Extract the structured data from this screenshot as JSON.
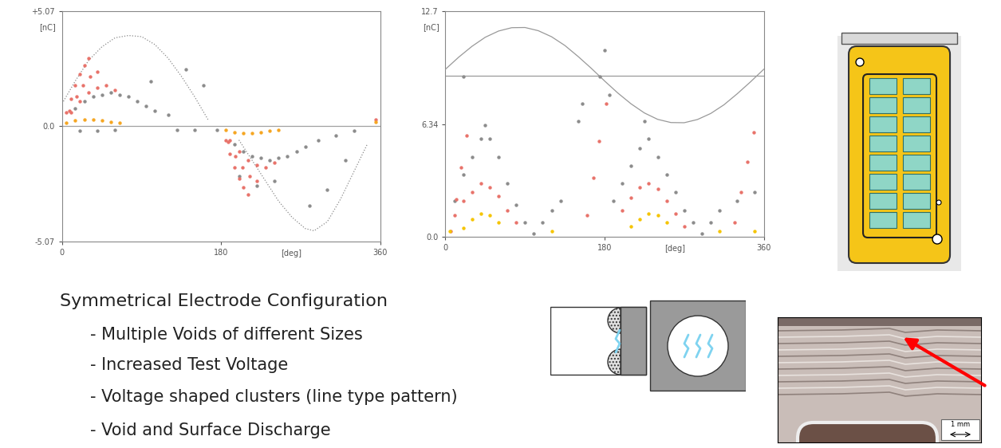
{
  "chart_data": [
    {
      "type": "scatter",
      "xlabel": "[deg]",
      "ylabel": "[nC]",
      "xlim": [
        0,
        360
      ],
      "ylim": [
        -5.07,
        5.07
      ],
      "xticks": [
        0,
        180,
        360
      ],
      "yticks": [
        -5.07,
        {
          "value": 0,
          "label": "0.0"
        },
        {
          "value": 5.07,
          "label": "+5.07"
        }
      ],
      "series": [
        {
          "type": "line",
          "color": "#a0a0a0",
          "line_style": "solid",
          "x": [
            0,
            360
          ],
          "values": [
            0,
            0
          ]
        },
        {
          "type": "line",
          "color": "#8a8a8a",
          "line_style": "dotted",
          "x": [
            0,
            15,
            30,
            45,
            60,
            75,
            90,
            105,
            120,
            135,
            150,
            165
          ],
          "values": [
            1.0,
            2.0,
            2.9,
            3.5,
            3.9,
            4.0,
            3.95,
            3.6,
            3.0,
            2.2,
            1.3,
            0.3
          ]
        },
        {
          "type": "line",
          "color": "#8a8a8a",
          "line_style": "dotted",
          "x": [
            200,
            215,
            230,
            245,
            260,
            275,
            285,
            300,
            315,
            330,
            345
          ],
          "values": [
            -0.6,
            -1.5,
            -2.4,
            -3.3,
            -4.0,
            -4.5,
            -4.6,
            -4.2,
            -3.2,
            -2.0,
            -0.8
          ]
        },
        {
          "type": "scatter",
          "color": "#8c8c8c",
          "marker": "o",
          "x": [
            15,
            25,
            35,
            45,
            55,
            65,
            75,
            85,
            95,
            105,
            120,
            140,
            160,
            175,
            195,
            205,
            215,
            225,
            235,
            245,
            255,
            265,
            275,
            290,
            310,
            330,
            20,
            40,
            60,
            200,
            220,
            240,
            130,
            150,
            300,
            320,
            100,
            280
          ],
          "values": [
            0.8,
            1.1,
            1.3,
            1.4,
            1.5,
            1.4,
            1.3,
            1.1,
            0.9,
            0.7,
            0.5,
            2.5,
            1.8,
            -0.15,
            -0.8,
            -1.1,
            -1.3,
            -1.4,
            -1.5,
            -1.4,
            -1.3,
            -1.1,
            -0.9,
            -0.6,
            -0.4,
            -0.2,
            -0.2,
            -0.2,
            -0.15,
            -2.2,
            -2.6,
            -2.4,
            -0.15,
            -0.15,
            -2.8,
            -1.5,
            2.0,
            -3.5
          ]
        },
        {
          "type": "scatter",
          "color": "#e8736b",
          "marker": "o",
          "x": [
            5,
            10,
            15,
            20,
            25,
            30,
            8,
            16,
            24,
            32,
            40,
            10,
            20,
            30,
            40,
            50,
            60,
            185,
            190,
            195,
            200,
            205,
            210,
            188,
            196,
            204,
            212,
            220,
            190,
            200,
            210,
            220,
            230,
            240,
            355
          ],
          "values": [
            0.6,
            1.2,
            1.8,
            2.3,
            2.7,
            3.0,
            0.7,
            1.3,
            1.8,
            2.2,
            2.4,
            0.6,
            1.1,
            1.5,
            1.7,
            1.8,
            1.6,
            -0.6,
            -1.2,
            -1.8,
            -2.3,
            -2.7,
            -3.0,
            -0.7,
            -1.3,
            -1.8,
            -2.2,
            -2.4,
            -0.6,
            -1.1,
            -1.5,
            -1.7,
            -1.8,
            -1.6,
            0.3
          ]
        },
        {
          "type": "scatter",
          "color": "#f5a623",
          "marker": "o",
          "x": [
            5,
            15,
            25,
            35,
            45,
            55,
            65,
            185,
            195,
            205,
            215,
            225,
            235,
            245,
            355
          ],
          "values": [
            0.15,
            0.25,
            0.3,
            0.3,
            0.25,
            0.2,
            0.15,
            -0.15,
            -0.25,
            -0.3,
            -0.3,
            -0.25,
            -0.2,
            -0.15,
            0.2
          ]
        }
      ]
    },
    {
      "type": "scatter",
      "xlabel": "[deg]",
      "ylabel": "[nC]",
      "xlim": [
        0,
        360
      ],
      "ylim": [
        0,
        12.7
      ],
      "xticks": [
        0,
        180,
        360
      ],
      "yticks": [
        {
          "value": 0,
          "label": "0.0"
        },
        6.34,
        12.7
      ],
      "series": [
        {
          "type": "line",
          "color": "#999999",
          "line_style": "solid",
          "x": [
            0,
            360
          ],
          "values": [
            9.06,
            9.06
          ]
        },
        {
          "type": "line",
          "color": "#999999",
          "line_style": "solid",
          "x": [
            0,
            15,
            30,
            45,
            60,
            75,
            90,
            105,
            120,
            135,
            150,
            165,
            180,
            195,
            210,
            225,
            240,
            255,
            270,
            285,
            300,
            315,
            330,
            345,
            360
          ],
          "values": [
            9.43,
            10.11,
            10.72,
            11.23,
            11.58,
            11.77,
            11.78,
            11.6,
            11.26,
            10.77,
            10.15,
            9.48,
            8.77,
            8.09,
            7.48,
            6.97,
            6.61,
            6.43,
            6.42,
            6.6,
            6.94,
            7.43,
            8.05,
            8.72,
            9.43
          ]
        },
        {
          "type": "scatter",
          "color": "#8c8c8c",
          "marker": "o",
          "x": [
            10,
            20,
            30,
            40,
            45,
            50,
            60,
            70,
            80,
            90,
            100,
            110,
            120,
            130,
            190,
            200,
            210,
            220,
            225,
            230,
            240,
            250,
            260,
            270,
            280,
            290,
            300,
            310,
            330,
            350,
            175,
            180,
            185,
            150,
            20,
            155
          ],
          "values": [
            2.0,
            3.5,
            4.5,
            5.5,
            6.3,
            5.5,
            4.5,
            3.0,
            1.8,
            0.8,
            0.2,
            0.8,
            1.5,
            2.0,
            2.0,
            3.0,
            4.0,
            5.0,
            6.5,
            5.5,
            4.5,
            3.5,
            2.5,
            1.5,
            0.8,
            0.2,
            0.8,
            1.5,
            2.0,
            2.5,
            9.0,
            10.5,
            8.0,
            6.5,
            9.0,
            7.5
          ]
        },
        {
          "type": "scatter",
          "color": "#e8736b",
          "marker": "o",
          "x": [
            10,
            20,
            30,
            40,
            50,
            60,
            70,
            80,
            200,
            210,
            220,
            230,
            240,
            250,
            260,
            270,
            6,
            12,
            18,
            24,
            160,
            167,
            174,
            182,
            327,
            334,
            341,
            349
          ],
          "values": [
            1.2,
            2.0,
            2.5,
            3.0,
            2.8,
            2.3,
            1.5,
            0.8,
            1.5,
            2.2,
            2.8,
            3.0,
            2.7,
            2.0,
            1.3,
            0.6,
            0.3,
            2.1,
            3.9,
            5.7,
            1.2,
            3.3,
            5.4,
            7.5,
            0.8,
            2.5,
            4.2,
            5.9
          ]
        },
        {
          "type": "scatter",
          "color": "#f5c400",
          "marker": "o",
          "x": [
            5,
            20,
            30,
            40,
            50,
            60,
            120,
            210,
            220,
            230,
            240,
            250,
            310,
            350
          ],
          "values": [
            0.3,
            0.5,
            1.0,
            1.3,
            1.2,
            0.8,
            0.3,
            0.6,
            1.0,
            1.3,
            1.2,
            0.8,
            0.3,
            0.3
          ]
        }
      ]
    }
  ],
  "text": {
    "heading": "Symmetrical Electrode Configuration",
    "bullets": [
      "- Multiple Voids of different Sizes",
      "- Increased Test Voltage",
      "- Voltage shaped clusters (line type pattern)",
      "- Void and Surface Discharge"
    ]
  },
  "photo": {
    "scale_label": "1 mm"
  }
}
